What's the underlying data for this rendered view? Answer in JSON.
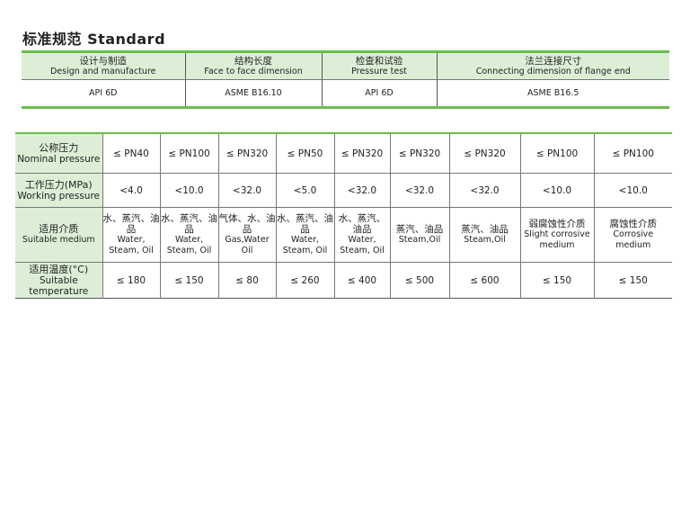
{
  "title": "标准规范  Standard",
  "standard_table": {
    "headers": [
      {
        "zh": "设计与制造",
        "en": "Design and manufacture"
      },
      {
        "zh": "结构长度",
        "en": "Face to face dimension"
      },
      {
        "zh": "检查和试验",
        "en": "Pressure test"
      },
      {
        "zh": "法兰连接尺寸",
        "en": "Connecting dimension of flange end"
      }
    ],
    "values": [
      "API 6D",
      "ASME B16.10",
      "API 6D",
      "ASME B16.5"
    ]
  },
  "spec_table": {
    "rows": [
      {
        "label_zh": "公称压力",
        "label_en": "Nominal pressure",
        "cells": [
          "≤ PN40",
          "≤ PN100",
          "≤ PN320",
          "≤ PN50",
          "≤ PN320",
          "≤ PN320",
          "≤ PN320",
          "≤ PN100",
          "≤ PN100"
        ]
      },
      {
        "label_zh": "工作压力(MPa)",
        "label_en": "Working pressure",
        "cells": [
          "<4.0",
          "<10.0",
          "<32.0",
          "<5.0",
          "<32.0",
          "<32.0",
          "<32.0",
          "<10.0",
          "<10.0"
        ]
      },
      {
        "label_zh": "适用介质",
        "label_en": "Suitable medium",
        "cells": [
          {
            "zh": "水、蒸汽、油品",
            "en": "Water, Steam, Oil"
          },
          {
            "zh": "水、蒸汽、油品",
            "en": "Water, Steam, Oil"
          },
          {
            "zh": "气体、水、油品",
            "en": "Gas,Water Oil"
          },
          {
            "zh": "水、蒸汽、油品",
            "en": "Water, Steam, Oil"
          },
          {
            "zh": "水、蒸汽、油品",
            "en": "Water, Steam, Oil"
          },
          {
            "zh": "蒸汽、油品",
            "en": "Steam,Oil"
          },
          {
            "zh": "蒸汽、油品",
            "en": "Steam,Oil"
          },
          {
            "zh": "弱腐蚀性介质",
            "en": "Slight corrosive medium"
          },
          {
            "zh": "腐蚀性介质",
            "en": "Corrosive medium"
          }
        ]
      },
      {
        "label_zh": "适用温度(°C)",
        "label_en": "Suitable temperature",
        "cells": [
          "≤ 180",
          "≤ 150",
          "≤ 80",
          "≤ 260",
          "≤ 400",
          "≤ 500",
          "≤ 600",
          "≤ 150",
          "≤ 150"
        ]
      }
    ]
  },
  "colors": {
    "accent_green": "#6abf4b",
    "header_bg": "#dcefd6"
  }
}
